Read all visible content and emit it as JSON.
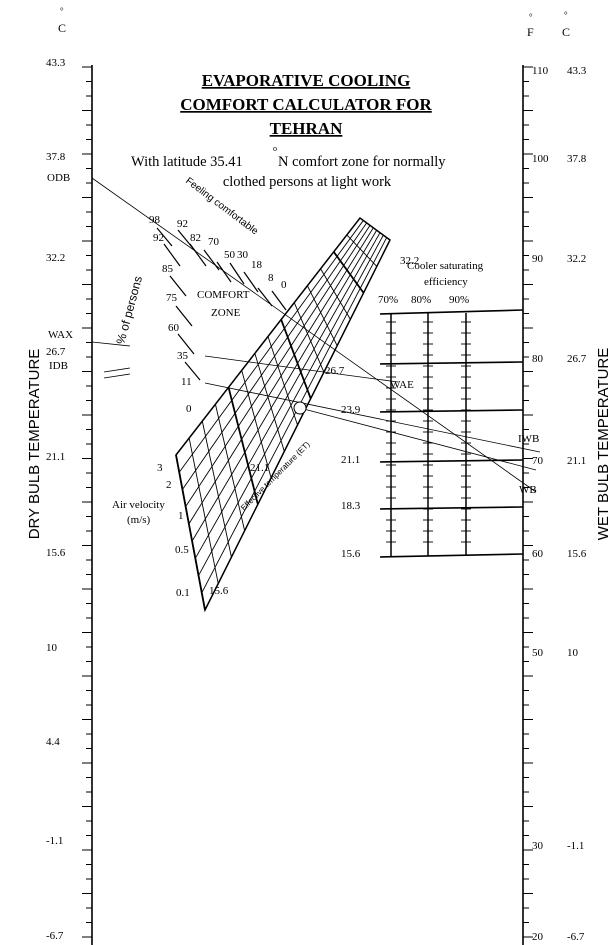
{
  "title": {
    "line1": "EVAPORATIVE COOLING",
    "line2": "COMFORT CALCULATOR FOR",
    "line3": "TEHRAN"
  },
  "subtitle": {
    "line1_pre": "With latitude 35.41",
    "degree": "o",
    "line1_post": "N comfort zone for normally",
    "line2": "clothed persons at light work"
  },
  "units": {
    "celsius": "C",
    "fahrenheit": "F",
    "degree": "°"
  },
  "axes": {
    "left_label": "DRY BULB TEMPERATURE",
    "right_label": "WET BULB TEMPERATURE",
    "left_ticks": [
      "43.3",
      "37.8",
      "32.2",
      "26.7",
      "21.1",
      "15.6",
      "10",
      "4.4",
      "-1.1",
      "-6.7"
    ],
    "right_f_ticks": [
      "110",
      "100",
      "90",
      "80",
      "70",
      "60",
      "50",
      "30",
      "20"
    ],
    "right_c_ticks": [
      "43.3",
      "37.8",
      "32.2",
      "26.7",
      "21.1",
      "15.6",
      "10",
      "-1.1",
      "-6.7"
    ]
  },
  "markers": {
    "odb": "ODB",
    "wax": "WAX",
    "idb": "IDB",
    "wae": "WAE",
    "iwb": "IWB",
    "wb": "WB"
  },
  "comfort": {
    "feeling_label": "Feeling comfortable",
    "persons_label": "% of persons",
    "zone_line1": "COMFORT",
    "zone_line2": "ZONE",
    "feeling_values": [
      "98",
      "92",
      "92",
      "82",
      "70",
      "50",
      "30",
      "18",
      "8",
      "0"
    ],
    "persons_values": [
      "85",
      "75",
      "60",
      "35",
      "11",
      "0"
    ]
  },
  "velocity": {
    "label_line1": "Air velocity",
    "label_line2": "(m/s)",
    "values": [
      "3",
      "2",
      "1",
      "0.5",
      "0.1"
    ]
  },
  "et": {
    "label": "Effective temperature (ET)",
    "values": [
      "32.2",
      "26.7",
      "23.9",
      "21.1",
      "15.6"
    ],
    "value_label_left": "21.1"
  },
  "cooler": {
    "label_line1": "Cooler saturating",
    "label_line2": "efficiency",
    "efficiencies": [
      "70%",
      "80%",
      "90%"
    ],
    "scale_values": [
      "26.7",
      "23.9",
      "21.1",
      "18.3",
      "15.6"
    ]
  }
}
